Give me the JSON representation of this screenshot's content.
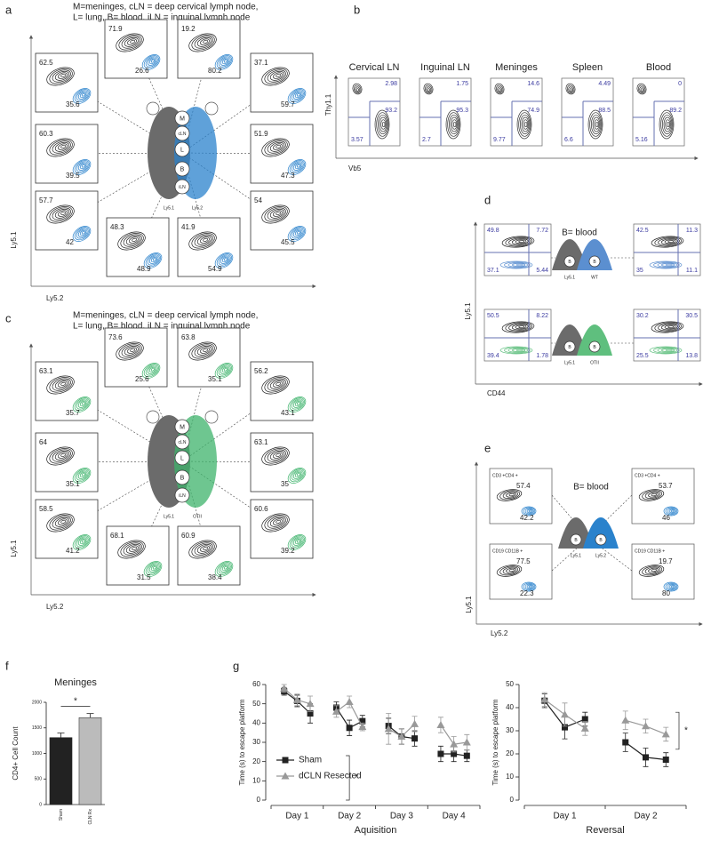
{
  "panel_a": {
    "letter": "a",
    "legend": [
      "M=meninges,  cLN = deep cervical lymph node,",
      "L= lung,  B= blood,  iLN = inguinal lymph node"
    ],
    "x_label": "Ly5.2",
    "y_label": "Ly5.1",
    "color": "#2a82cc",
    "organs": [
      "M",
      "cLN",
      "L",
      "B",
      "iLN"
    ],
    "strains": [
      "Ly5.1",
      "Ly5.2"
    ],
    "plots": [
      [
        "62.5",
        "35.6"
      ],
      [
        "71.9",
        "26.6"
      ],
      [
        "19.2",
        "80.2"
      ],
      [
        "37.1",
        "59.7"
      ],
      [
        "60.3",
        "39.5"
      ],
      [
        "51.9",
        "47.3"
      ],
      [
        "57.7",
        "42"
      ],
      [
        "48.3",
        "48.9"
      ],
      [
        "41.9",
        "54.9"
      ],
      [
        "54",
        "45.5"
      ]
    ]
  },
  "panel_b": {
    "letter": "b",
    "x_label": "Vb5",
    "y_label": "Thy1.1",
    "plots": [
      {
        "title": "Cervical LN",
        "values": [
          "2.98",
          "93.2",
          "3.57"
        ]
      },
      {
        "title": "Inguinal LN",
        "values": [
          "1.75",
          "95.3",
          "2.7"
        ]
      },
      {
        "title": "Meninges",
        "values": [
          "14.6",
          "74.9",
          "9.77"
        ]
      },
      {
        "title": "Spleen",
        "values": [
          "4.49",
          "88.5",
          "6.6"
        ]
      },
      {
        "title": "Blood",
        "values": [
          "0",
          "89.2",
          "5.16"
        ]
      }
    ]
  },
  "panel_c": {
    "letter": "c",
    "legend": [
      "M=meninges,  cLN = deep cervical lymph node,",
      "L= lung,  B= blood,  iLN = inguinal lymph node"
    ],
    "x_label": "Ly5.2",
    "y_label": "Ly5.1",
    "color": "#3db36b",
    "organs": [
      "M",
      "cLN",
      "L",
      "B",
      "iLN"
    ],
    "strains": [
      "Ly5.1",
      "OTII"
    ],
    "plots": [
      [
        "63.1",
        "35.7"
      ],
      [
        "73.6",
        "25.6"
      ],
      [
        "63.8",
        "35.1"
      ],
      [
        "56.2",
        "43.1"
      ],
      [
        "64",
        "35.1"
      ],
      [
        "63.1",
        "35"
      ],
      [
        "58.5",
        "41.2"
      ],
      [
        "68.1",
        "31.5"
      ],
      [
        "60.9",
        "38.4"
      ],
      [
        "60.6",
        "39.2"
      ]
    ]
  },
  "panel_d": {
    "letter": "d",
    "note": "B= blood",
    "organ": "B",
    "x_label": "CD44",
    "y_label": "Ly5.1",
    "rows": [
      {
        "strains": [
          "Ly5.1",
          "WT"
        ],
        "color": "#5b8fd0",
        "left": [
          "49.8",
          "7.72",
          "37.1",
          "5.44"
        ],
        "right": [
          "42.5",
          "11.3",
          "35",
          "11.1"
        ]
      },
      {
        "strains": [
          "Ly5.1",
          "OTII"
        ],
        "color": "#5fbf7e",
        "left": [
          "50.5",
          "8.22",
          "39.4",
          "1.78"
        ],
        "right": [
          "30.2",
          "30.5",
          "25.5",
          "13.8"
        ]
      }
    ]
  },
  "panel_e": {
    "letter": "e",
    "note": "B= blood",
    "organ": "B",
    "x_label": "Ly5.2",
    "y_label": "Ly5.1",
    "color": "#2a82cc",
    "strains": [
      "Ly5.1",
      "Ly5.2"
    ],
    "plots": [
      {
        "gate": "CD3 +CD4 +",
        "values": [
          "57.4",
          "42.2"
        ]
      },
      {
        "gate": "CD3 +CD4 +",
        "values": [
          "53.7",
          "46"
        ]
      },
      {
        "gate": "CD19  CD11B +",
        "values": [
          "77.5",
          "22.3"
        ]
      },
      {
        "gate": "CD19  CD11B +",
        "values": [
          "19.7",
          "80"
        ]
      }
    ]
  },
  "chart_data": [
    {
      "type": "bar",
      "panel": "f",
      "title": "Meninges",
      "y_label": "CD4+ Cell Count",
      "categories": [
        "Sham",
        "CLN Rx"
      ],
      "values": [
        1310,
        1700
      ],
      "errors": [
        90,
        80
      ],
      "colors": [
        "#222222",
        "#bbbbbb"
      ],
      "ylim": [
        0,
        2000
      ],
      "yticks": [
        0,
        500,
        1000,
        1500,
        2000
      ],
      "annotation": "*"
    },
    {
      "type": "line",
      "panel": "g",
      "x_label": "Aquisition",
      "y_label": "Time (s) to escape platform",
      "categories": [
        null,
        "Day 1",
        null,
        null,
        "Day 2",
        null,
        null,
        "Day 3",
        null,
        null,
        "Day 4",
        null
      ],
      "series": [
        {
          "name": "Sham",
          "color": "#222222",
          "marker": "square",
          "values": [
            56.5,
            51.5,
            45,
            48,
            37.5,
            41,
            38.5,
            33,
            32,
            24,
            24,
            23
          ],
          "errors": [
            2,
            3,
            5,
            3,
            4,
            3,
            4,
            4,
            4,
            4,
            4,
            3
          ]
        },
        {
          "name": "dCLN Resected",
          "color": "#999999",
          "marker": "triangle",
          "values": [
            58,
            52,
            50,
            46,
            51,
            38,
            37,
            33,
            39.5,
            39,
            29,
            30
          ],
          "errors": [
            2,
            3,
            4,
            3,
            3,
            2,
            8,
            4,
            4,
            4,
            4,
            4
          ]
        }
      ],
      "ylim": [
        0,
        60
      ],
      "yticks": [
        0,
        10,
        20,
        30,
        40,
        50,
        60
      ],
      "legend": "lower-left",
      "annotation": "*"
    },
    {
      "type": "line",
      "x_label": "Reversal",
      "y_label": "Time (s) to escape platform",
      "categories": [
        null,
        "Day 1",
        null,
        null,
        "Day 2",
        null
      ],
      "series": [
        {
          "name": "Sham",
          "color": "#222222",
          "marker": "square",
          "values": [
            43,
            31.5,
            35,
            25,
            18.5,
            17.5
          ],
          "errors": [
            3,
            5,
            3,
            4,
            4,
            3
          ]
        },
        {
          "name": "dCLN Resected",
          "color": "#999999",
          "marker": "triangle",
          "values": [
            43.5,
            37,
            31,
            34.5,
            32,
            28.5
          ],
          "errors": [
            3,
            5,
            3,
            4,
            3,
            3
          ]
        }
      ],
      "ylim": [
        0,
        50
      ],
      "yticks": [
        0,
        10,
        20,
        30,
        40,
        50
      ],
      "annotation": "*"
    }
  ]
}
